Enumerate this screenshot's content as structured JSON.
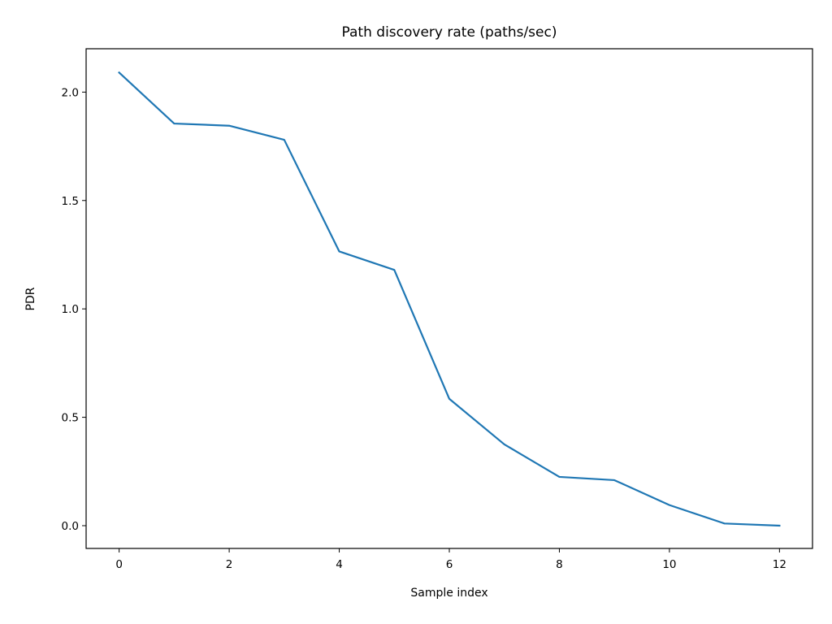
{
  "chart_data": {
    "type": "line",
    "title": "Path discovery rate (paths/sec)",
    "xlabel": "Sample index",
    "ylabel": "PDR",
    "xlim": [
      -0.6,
      12.6
    ],
    "ylim": [
      -0.105,
      2.2
    ],
    "xticks": [
      0,
      2,
      4,
      6,
      8,
      10,
      12
    ],
    "yticks": [
      0.0,
      0.5,
      1.0,
      1.5,
      2.0
    ],
    "ytick_labels": [
      "0.0",
      "0.5",
      "1.0",
      "1.5",
      "2.0"
    ],
    "grid": false,
    "legend": "none",
    "series": [
      {
        "color": "#1f77b4",
        "x": [
          0,
          1,
          2,
          3,
          4,
          5,
          6,
          7,
          8,
          9,
          10,
          11,
          12
        ],
        "y": [
          2.09,
          1.855,
          1.845,
          1.78,
          1.265,
          1.18,
          0.585,
          0.375,
          0.225,
          0.21,
          0.095,
          0.01,
          0.0
        ]
      }
    ]
  }
}
